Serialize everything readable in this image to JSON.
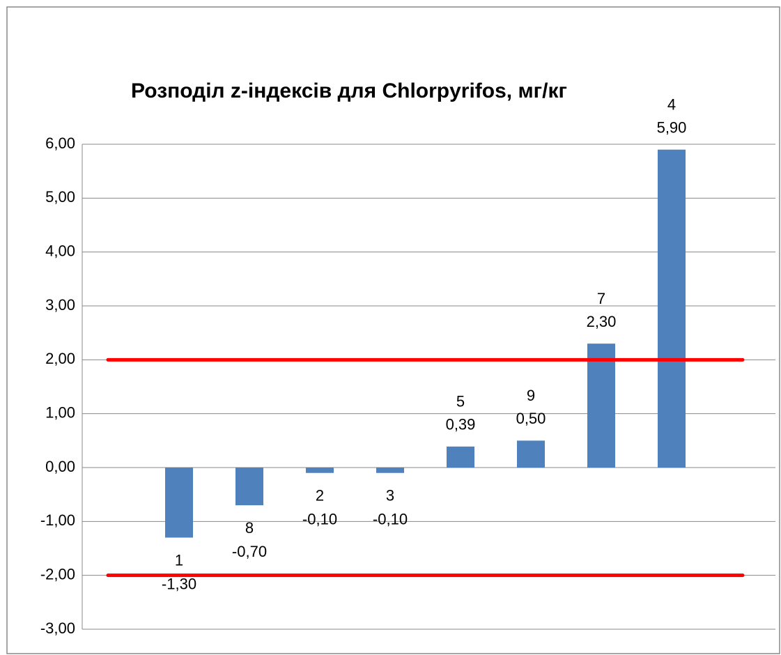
{
  "chart_data": {
    "type": "bar",
    "title": "Розподіл z-індексів для  Chlorpyrifos, мг/кг",
    "categories": [
      "1",
      "8",
      "2",
      "3",
      "5",
      "9",
      "7",
      "4"
    ],
    "values": [
      -1.3,
      -0.7,
      -0.1,
      -0.1,
      0.39,
      0.5,
      2.3,
      5.9
    ],
    "value_labels": [
      "-1,30",
      "-0,70",
      "-0,10",
      "-0,10",
      "0,39",
      "0,50",
      "2,30",
      "5,90"
    ],
    "color": "#4f81bd",
    "ylim": [
      -3,
      6
    ],
    "yticks": [
      {
        "value": -3,
        "label": "-3,00"
      },
      {
        "value": -2,
        "label": "-2,00"
      },
      {
        "value": -1,
        "label": "-1,00"
      },
      {
        "value": 0,
        "label": "0,00"
      },
      {
        "value": 1,
        "label": "1,00"
      },
      {
        "value": 2,
        "label": "2,00"
      },
      {
        "value": 3,
        "label": "3,00"
      },
      {
        "value": 4,
        "label": "4,00"
      },
      {
        "value": 5,
        "label": "5,00"
      },
      {
        "value": 6,
        "label": "6,00"
      }
    ],
    "grid": true,
    "reference_lines": [
      {
        "value": 2,
        "color": "#ff0000"
      },
      {
        "value": -2,
        "color": "#ff0000"
      }
    ]
  }
}
